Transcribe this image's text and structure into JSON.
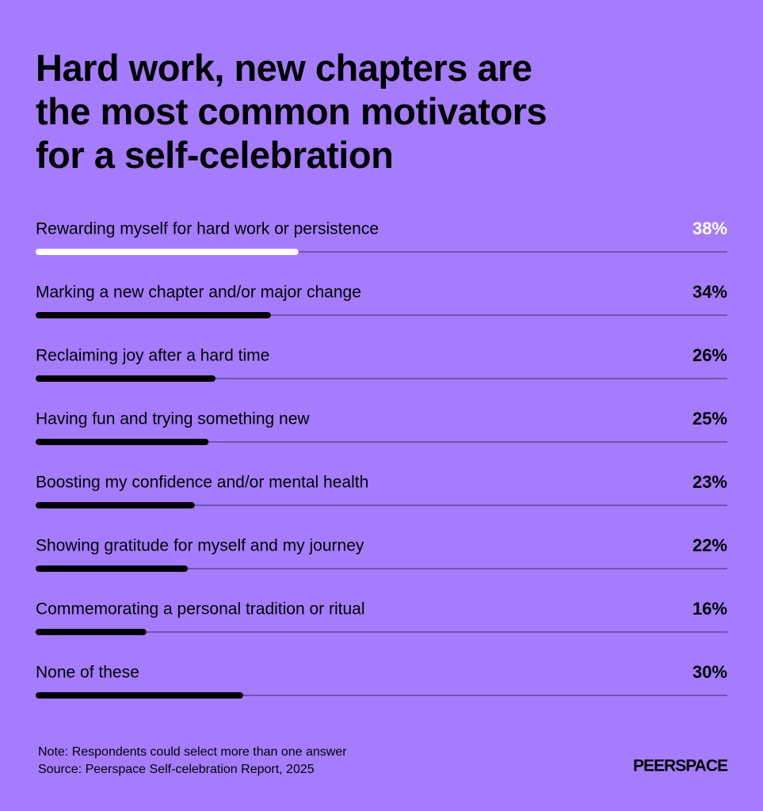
{
  "chart_data": {
    "type": "bar",
    "orientation": "horizontal",
    "title": "Hard work, new chapters are\nthe most common motivators\nfor a self-celebration",
    "categories": [
      "Rewarding myself for hard work or persistence",
      "Marking a new chapter and/or major change",
      "Reclaiming joy after a hard time",
      "Having fun and trying something new",
      "Boosting my confidence and/or mental health",
      "Showing gratitude for myself and my journey",
      "Commemorating a personal tradition or ritual",
      "None of these"
    ],
    "values": [
      38,
      34,
      26,
      25,
      23,
      22,
      16,
      30
    ],
    "value_labels": [
      "38%",
      "34%",
      "26%",
      "25%",
      "23%",
      "22%",
      "16%",
      "30%"
    ],
    "colors": [
      "#ffffff",
      "#000000",
      "#000000",
      "#000000",
      "#000000",
      "#000000",
      "#000000",
      "#000000"
    ],
    "xlim": [
      0,
      100
    ],
    "note": "Note: Respondents could select more than one answer",
    "source": "Source: Peerspace Self-celebration Report, 2025",
    "brand": "PEERSPACE"
  }
}
